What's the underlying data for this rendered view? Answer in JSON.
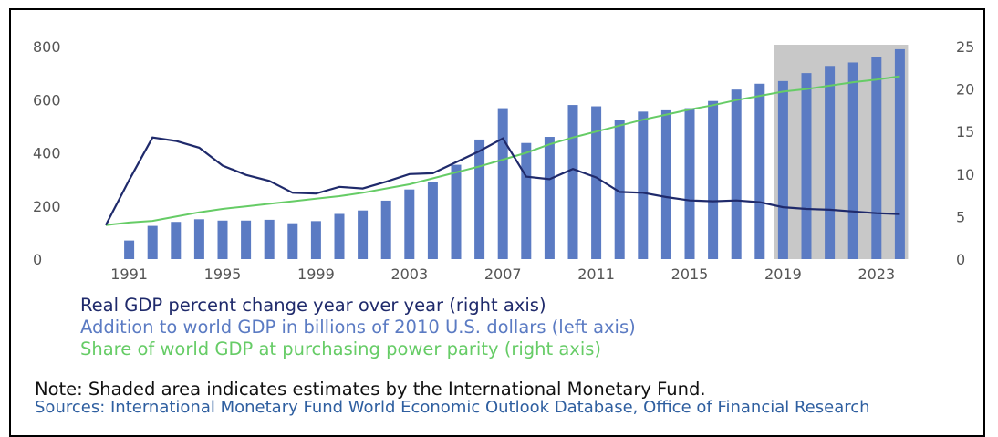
{
  "chart_data": {
    "type": "bar",
    "categories": [
      "1990",
      "1991",
      "1992",
      "1993",
      "1994",
      "1995",
      "1996",
      "1997",
      "1998",
      "1999",
      "2000",
      "2001",
      "2002",
      "2003",
      "2004",
      "2005",
      "2006",
      "2007",
      "2008",
      "2009",
      "2010",
      "2011",
      "2012",
      "2013",
      "2014",
      "2015",
      "2016",
      "2017",
      "2018",
      "2019",
      "2020",
      "2021",
      "2022",
      "2023",
      "2024"
    ],
    "x_tick_labels": [
      "1991",
      "1995",
      "1999",
      "2003",
      "2007",
      "2011",
      "2015",
      "2019",
      "2023"
    ],
    "left_axis": {
      "ticks": [
        "0",
        "200",
        "400",
        "600",
        "800"
      ],
      "ylim": [
        0,
        800
      ]
    },
    "right_axis": {
      "ticks": [
        "0",
        "5",
        "10",
        "15",
        "20",
        "25"
      ],
      "ylim": [
        0,
        25
      ]
    },
    "shaded_region": {
      "from": "2019",
      "to": "2024",
      "color": "#c8c8c8"
    },
    "series": [
      {
        "name": "Addition to world GDP in billions of 2010 U.S. dollars (left axis)",
        "type": "bar",
        "axis": "left",
        "color": "#5b7bc3",
        "values": [
          null,
          70,
          125,
          140,
          150,
          145,
          145,
          148,
          135,
          143,
          170,
          183,
          220,
          262,
          290,
          355,
          450,
          568,
          437,
          460,
          580,
          575,
          523,
          555,
          560,
          568,
          595,
          638,
          660,
          670,
          700,
          727,
          740,
          762,
          790
        ]
      },
      {
        "name": "Real GDP percent change year over year (right axis)",
        "type": "line",
        "axis": "right",
        "color": "#1f2a6b",
        "values": [
          4.0,
          9.3,
          14.3,
          13.9,
          13.1,
          11.0,
          9.9,
          9.2,
          7.8,
          7.7,
          8.5,
          8.3,
          9.1,
          10.0,
          10.1,
          11.4,
          12.7,
          14.2,
          9.7,
          9.4,
          10.6,
          9.6,
          7.9,
          7.8,
          7.3,
          6.9,
          6.8,
          6.9,
          6.7,
          6.1,
          5.9,
          5.8,
          5.6,
          5.4,
          5.3
        ]
      },
      {
        "name": "Share of world GDP at purchasing power parity (right axis)",
        "type": "line",
        "axis": "right",
        "color": "#66cc66",
        "values": [
          4.0,
          4.3,
          4.5,
          5.0,
          5.5,
          5.9,
          6.2,
          6.5,
          6.8,
          7.1,
          7.4,
          7.8,
          8.3,
          8.8,
          9.5,
          10.2,
          10.9,
          11.7,
          12.5,
          13.5,
          14.3,
          15.0,
          15.7,
          16.4,
          17.0,
          17.6,
          18.1,
          18.7,
          19.2,
          19.7,
          20.0,
          20.4,
          20.8,
          21.1,
          21.5
        ]
      }
    ]
  },
  "colors": {
    "bar": "#5b7bc3",
    "gdp_line": "#1f2a6b",
    "share_line": "#66cc66",
    "shade": "#c8c8c8",
    "axis_text": "#555555",
    "source_text": "#2f5fa0"
  },
  "legend": [
    {
      "label": "Real GDP percent change year over year (right axis)",
      "color": "#1f2a6b"
    },
    {
      "label": "Addition to world GDP in billions of 2010 U.S. dollars (left axis)",
      "color": "#5b7bc3"
    },
    {
      "label": "Share of world GDP at purchasing power parity (right axis)",
      "color": "#66cc66"
    }
  ],
  "note": "Note: Shaded area indicates estimates by the International Monetary Fund.",
  "sources": "Sources: International Monetary Fund World Economic Outlook Database, Office of Financial Research"
}
